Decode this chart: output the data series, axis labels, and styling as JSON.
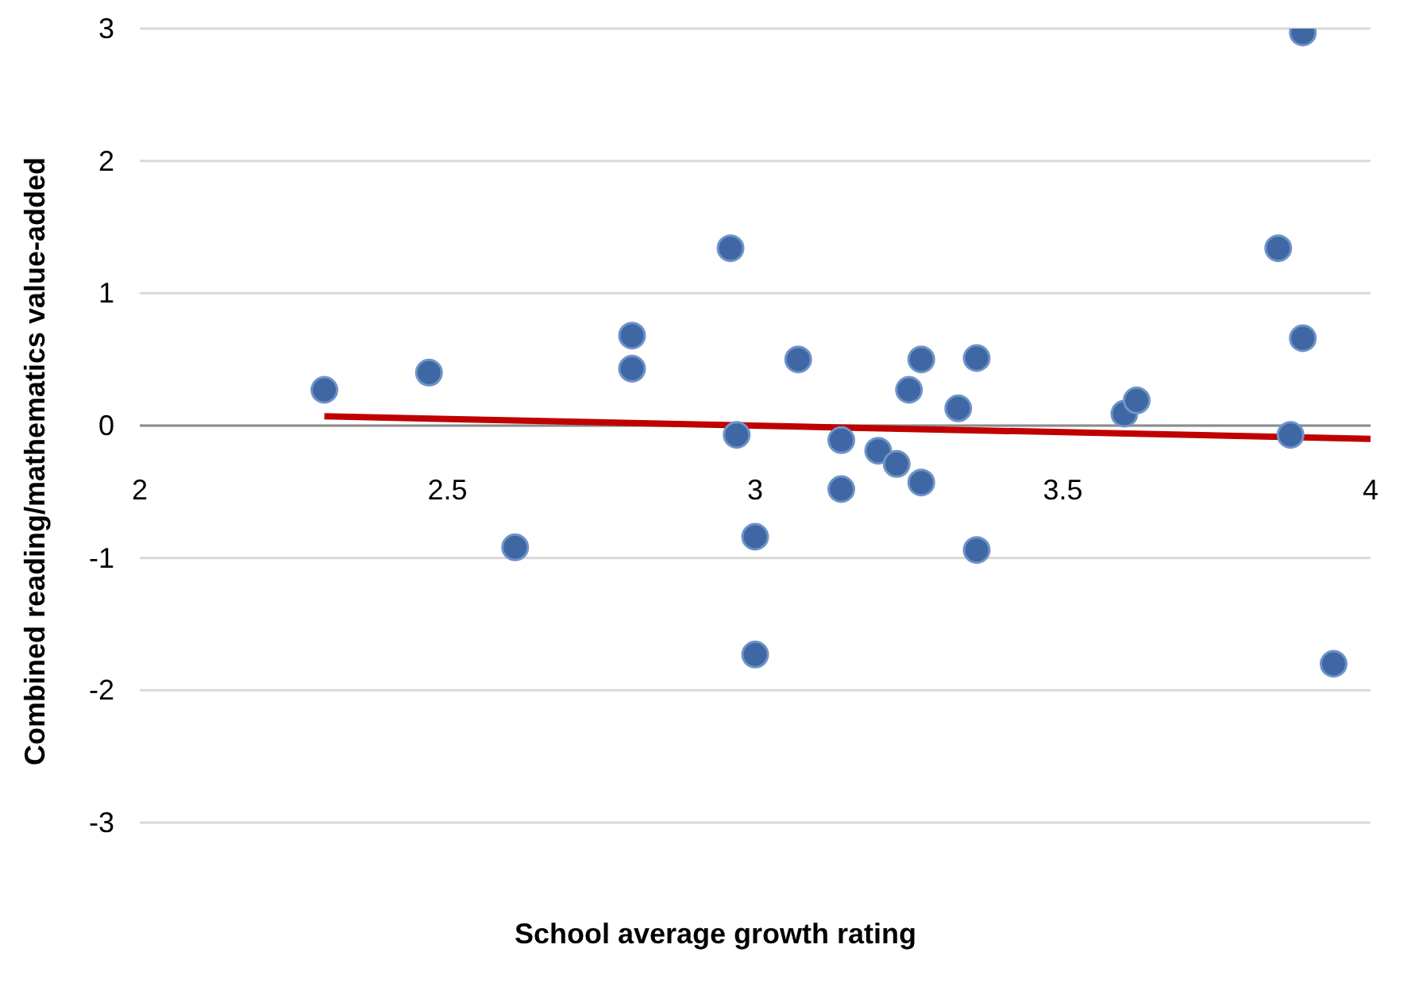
{
  "chart_data": {
    "type": "scatter",
    "xlabel": "School average growth rating",
    "ylabel": "Combined reading/mathematics value-added",
    "xlim": [
      2,
      4
    ],
    "xticks": [
      2,
      2.5,
      3,
      3.5,
      4
    ],
    "ylim": [
      -3,
      3
    ],
    "yticks": [
      -3,
      -2,
      -1,
      0,
      1,
      2,
      3
    ],
    "grid": "y",
    "marker": "circle",
    "series": [
      {
        "type": "scatter",
        "color": "#3e67a3",
        "x": [
          2.3,
          2.47,
          2.61,
          2.8,
          2.8,
          2.96,
          2.97,
          3.0,
          3.0,
          3.07,
          3.14,
          3.14,
          3.2,
          3.23,
          3.25,
          3.27,
          3.27,
          3.33,
          3.36,
          3.36,
          3.6,
          3.62,
          3.85,
          3.87,
          3.89,
          3.89,
          3.94
        ],
        "values": [
          0.27,
          0.4,
          -0.92,
          0.68,
          0.43,
          1.34,
          -0.07,
          -0.84,
          -1.73,
          0.5,
          -0.11,
          -0.48,
          -0.19,
          -0.29,
          0.27,
          0.5,
          -0.43,
          0.13,
          0.51,
          -0.94,
          0.09,
          0.19,
          1.34,
          -0.07,
          0.66,
          2.97,
          -1.8
        ]
      },
      {
        "type": "line",
        "color": "#c00000",
        "x": [
          2.3,
          4
        ],
        "values": [
          0.07,
          -0.1
        ],
        "marker": "none"
      }
    ]
  }
}
